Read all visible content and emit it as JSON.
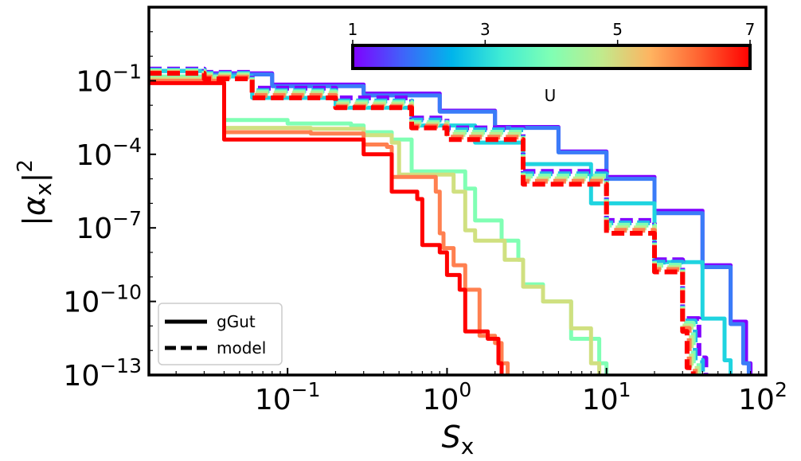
{
  "chart_data": {
    "type": "line",
    "xscale": "log",
    "yscale": "log",
    "xlim": [
      0.0135,
      100
    ],
    "ylim": [
      1e-13,
      100
    ],
    "xlabel": "S_x",
    "ylabel": "|α_x|^2",
    "x_ticks": [
      {
        "value": 0.1,
        "base": "10",
        "exp": "−1"
      },
      {
        "value": 1,
        "base": "10",
        "exp": "0"
      },
      {
        "value": 10,
        "base": "10",
        "exp": "1"
      },
      {
        "value": 100,
        "base": "10",
        "exp": "2"
      }
    ],
    "y_ticks": [
      {
        "value": 0.1,
        "base": "10",
        "exp": "−1"
      },
      {
        "value": 0.0001,
        "base": "10",
        "exp": "−4"
      },
      {
        "value": 1e-07,
        "base": "10",
        "exp": "−7"
      },
      {
        "value": 1e-10,
        "base": "10",
        "exp": "−10"
      },
      {
        "value": 1e-13,
        "base": "10",
        "exp": "−13"
      }
    ],
    "colorbar": {
      "label": "U",
      "min": 1,
      "max": 7,
      "ticks": [
        "1",
        "3",
        "5",
        "7"
      ],
      "colors": [
        "#8000ff",
        "#4062fa",
        "#00b5eb",
        "#40ecd4",
        "#80ffb4",
        "#c0eb8d",
        "#ffb360",
        "#ff6130",
        "#ff0000"
      ]
    },
    "legend": {
      "position": "lower-left",
      "entries": [
        {
          "label": "gGut",
          "style": "solid"
        },
        {
          "label": "model",
          "style": "dashed"
        }
      ]
    },
    "series": [
      {
        "name": "gGut U=1",
        "style": "solid",
        "color": "#8000ff",
        "points": [
          [
            0.0135,
            0.25
          ],
          [
            0.03,
            0.2
          ],
          [
            0.08,
            0.07
          ],
          [
            0.3,
            0.03
          ],
          [
            0.9,
            0.006
          ],
          [
            2,
            0.0013
          ],
          [
            5,
            0.00013
          ],
          [
            10,
            1.2e-05
          ],
          [
            20,
            5e-07
          ],
          [
            40,
            3e-09
          ],
          [
            60,
            1.5e-11
          ],
          [
            75,
            3e-13
          ],
          [
            80,
            1e-13
          ]
        ]
      },
      {
        "name": "gGut U=2",
        "style": "solid",
        "color": "#3a7cf8",
        "points": [
          [
            0.0135,
            0.25
          ],
          [
            0.03,
            0.18
          ],
          [
            0.08,
            0.06
          ],
          [
            0.3,
            0.025
          ],
          [
            0.9,
            0.0055
          ],
          [
            2,
            0.0012
          ],
          [
            5,
            0.00012
          ],
          [
            10,
            1e-05
          ],
          [
            20,
            4e-07
          ],
          [
            40,
            2.5e-09
          ],
          [
            60,
            1.2e-11
          ],
          [
            72,
            3e-13
          ],
          [
            78,
            1e-13
          ]
        ]
      },
      {
        "name": "gGut U=3",
        "style": "solid",
        "color": "#1fd4e0",
        "points": [
          [
            0.0135,
            0.25
          ],
          [
            0.03,
            0.15
          ],
          [
            0.06,
            0.02
          ],
          [
            0.2,
            0.008
          ],
          [
            0.6,
            0.0015
          ],
          [
            1.5,
            0.0003
          ],
          [
            3,
            4e-05
          ],
          [
            8,
            1e-06
          ],
          [
            20,
            4e-09
          ],
          [
            40,
            2e-11
          ],
          [
            55,
            4e-13
          ],
          [
            60,
            1e-13
          ]
        ]
      },
      {
        "name": "gGut U=4",
        "style": "solid",
        "color": "#80ffb4",
        "points": [
          [
            0.0135,
            0.15
          ],
          [
            0.04,
            0.0025
          ],
          [
            0.1,
            0.0018
          ],
          [
            0.25,
            0.0015
          ],
          [
            0.3,
            0.0008
          ],
          [
            0.45,
            0.0004
          ],
          [
            0.6,
            2e-05
          ],
          [
            1.3,
            4e-06
          ],
          [
            1.5,
            2e-07
          ],
          [
            2.2,
            3e-08
          ],
          [
            2.8,
            5e-09
          ],
          [
            3,
            5e-10
          ],
          [
            4,
            1e-10
          ],
          [
            6,
            3e-12
          ],
          [
            9,
            3e-13
          ],
          [
            10,
            1e-13
          ]
        ]
      },
      {
        "name": "gGut U=5",
        "style": "solid",
        "color": "#d0e080",
        "points": [
          [
            0.0135,
            0.12
          ],
          [
            0.04,
            0.0012
          ],
          [
            0.14,
            0.0011
          ],
          [
            0.3,
            0.0006
          ],
          [
            0.45,
            0.0003
          ],
          [
            0.5,
            1.5e-05
          ],
          [
            1.1,
            3e-06
          ],
          [
            1.3,
            8e-08
          ],
          [
            1.5,
            3e-08
          ],
          [
            2.3,
            5e-09
          ],
          [
            3,
            4e-10
          ],
          [
            4,
            1e-10
          ],
          [
            6,
            8e-12
          ],
          [
            8,
            3e-13
          ],
          [
            9,
            1e-13
          ]
        ]
      },
      {
        "name": "gGut U=6",
        "style": "solid",
        "color": "#ff8050",
        "points": [
          [
            0.0135,
            0.1
          ],
          [
            0.04,
            0.0008
          ],
          [
            0.14,
            0.0007
          ],
          [
            0.3,
            0.00025
          ],
          [
            0.42,
            0.0002
          ],
          [
            0.45,
            1.2e-05
          ],
          [
            0.85,
            3e-06
          ],
          [
            0.9,
            6e-08
          ],
          [
            0.95,
            1.5e-08
          ],
          [
            1.1,
            3e-09
          ],
          [
            1.3,
            3e-10
          ],
          [
            1.6,
            4e-12
          ],
          [
            2,
            2e-12
          ],
          [
            2.2,
            3e-13
          ],
          [
            2.4,
            1e-13
          ]
        ]
      },
      {
        "name": "gGut U=7",
        "style": "solid",
        "color": "#ff0000",
        "points": [
          [
            0.0135,
            0.08
          ],
          [
            0.04,
            0.0004
          ],
          [
            0.14,
            0.0004
          ],
          [
            0.3,
            0.0001
          ],
          [
            0.41,
            0.0001
          ],
          [
            0.45,
            3e-06
          ],
          [
            0.65,
            1.5e-06
          ],
          [
            0.7,
            2e-08
          ],
          [
            0.9,
            1e-08
          ],
          [
            1,
            1.2e-09
          ],
          [
            1.2,
            3e-10
          ],
          [
            1.3,
            6e-12
          ],
          [
            1.8,
            3e-12
          ],
          [
            2.1,
            3e-13
          ],
          [
            2.2,
            1e-13
          ]
        ]
      },
      {
        "name": "model U=1",
        "style": "dashed",
        "color": "#8000ff",
        "points": [
          [
            0.0135,
            0.3
          ],
          [
            0.03,
            0.22
          ],
          [
            0.06,
            0.05
          ],
          [
            0.2,
            0.02
          ],
          [
            0.6,
            0.003
          ],
          [
            1,
            0.0012
          ],
          [
            3,
            2e-05
          ],
          [
            10,
            2e-07
          ],
          [
            20,
            5e-09
          ],
          [
            30,
            2e-11
          ],
          [
            38,
            5e-13
          ],
          [
            42,
            1e-13
          ]
        ]
      },
      {
        "name": "model U=3",
        "style": "dashed",
        "color": "#20b8e8",
        "points": [
          [
            0.0135,
            0.27
          ],
          [
            0.03,
            0.2
          ],
          [
            0.06,
            0.04
          ],
          [
            0.2,
            0.015
          ],
          [
            0.6,
            0.0025
          ],
          [
            1,
            0.001
          ],
          [
            3,
            1.6e-05
          ],
          [
            10,
            1.6e-07
          ],
          [
            20,
            4e-09
          ],
          [
            30,
            1.6e-11
          ],
          [
            36,
            4e-13
          ],
          [
            40,
            1e-13
          ]
        ]
      },
      {
        "name": "model U=4",
        "style": "dashed",
        "color": "#80ffb4",
        "points": [
          [
            0.0135,
            0.25
          ],
          [
            0.03,
            0.18
          ],
          [
            0.06,
            0.035
          ],
          [
            0.2,
            0.013
          ],
          [
            0.6,
            0.002
          ],
          [
            1,
            0.0008
          ],
          [
            3,
            1.3e-05
          ],
          [
            10,
            1.3e-07
          ],
          [
            20,
            3e-09
          ],
          [
            30,
            1.3e-11
          ],
          [
            35,
            3e-13
          ],
          [
            38,
            1e-13
          ]
        ]
      },
      {
        "name": "model U=5",
        "style": "dashed",
        "color": "#c0eb8d",
        "points": [
          [
            0.0135,
            0.23
          ],
          [
            0.03,
            0.16
          ],
          [
            0.06,
            0.03
          ],
          [
            0.2,
            0.011
          ],
          [
            0.6,
            0.0017
          ],
          [
            1,
            0.00065
          ],
          [
            3,
            1e-05
          ],
          [
            10,
            1e-07
          ],
          [
            20,
            2.4e-09
          ],
          [
            30,
            1e-11
          ],
          [
            34,
            2.5e-13
          ],
          [
            37,
            1e-13
          ]
        ]
      },
      {
        "name": "model U=6",
        "style": "dashed",
        "color": "#ff8050",
        "points": [
          [
            0.0135,
            0.21
          ],
          [
            0.03,
            0.14
          ],
          [
            0.06,
            0.025
          ],
          [
            0.2,
            0.009
          ],
          [
            0.6,
            0.0014
          ],
          [
            1,
            0.0005
          ],
          [
            3,
            8e-06
          ],
          [
            10,
            8e-08
          ],
          [
            20,
            2e-09
          ],
          [
            30,
            8e-12
          ],
          [
            33,
            2e-13
          ],
          [
            36,
            1e-13
          ]
        ]
      },
      {
        "name": "model U=7",
        "style": "dashed",
        "color": "#ff0000",
        "points": [
          [
            0.0135,
            0.2
          ],
          [
            0.03,
            0.12
          ],
          [
            0.06,
            0.02
          ],
          [
            0.2,
            0.008
          ],
          [
            0.6,
            0.0012
          ],
          [
            1,
            0.0004
          ],
          [
            3,
            6e-06
          ],
          [
            10,
            6e-08
          ],
          [
            20,
            1.6e-09
          ],
          [
            30,
            6e-12
          ],
          [
            32,
            2e-13
          ],
          [
            35,
            1e-13
          ]
        ]
      }
    ]
  }
}
